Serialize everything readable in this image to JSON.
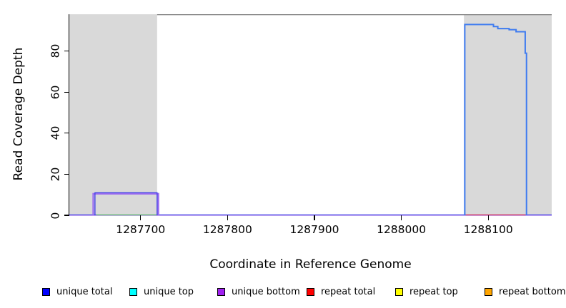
{
  "chart_data": {
    "type": "area",
    "title": "",
    "xlabel": "Coordinate in Reference Genome",
    "ylabel": "Read Coverage Depth",
    "xlim": [
      1287618,
      1288173
    ],
    "ylim": [
      0,
      98
    ],
    "x_ticks": [
      1287700,
      1287800,
      1287900,
      1288000,
      1288100
    ],
    "y_ticks": [
      0,
      20,
      40,
      60,
      80
    ],
    "grid": false,
    "legend_position": "bottom",
    "background_regions": [
      {
        "name": "shaded-region-left",
        "x_from": 1287618,
        "x_to": 1287719,
        "color": "#d9d9d9"
      },
      {
        "name": "shaded-region-right",
        "x_from": 1288072,
        "x_to": 1288173,
        "color": "#d9d9d9"
      }
    ],
    "top_border": {
      "x_from": 1287719,
      "x_to": 1288173,
      "color": "#777777"
    },
    "series": [
      {
        "name": "unique-bottom-baseline",
        "legend": "unique bottom",
        "color": "#c3a6f1",
        "width": 1.3,
        "dy": 0.4,
        "points": [
          [
            1287618,
            0
          ],
          [
            1288173,
            0
          ]
        ]
      },
      {
        "name": "unique-total-baseline",
        "legend": "unique total",
        "color": "#4a4ae8",
        "width": 1.2,
        "dy": -0.8,
        "points": [
          [
            1287618,
            0
          ],
          [
            1288173,
            0
          ]
        ]
      },
      {
        "name": "unique-top-segment",
        "legend": "unique top",
        "color": "#7cc87c",
        "width": 1.5,
        "dy": -0.6,
        "points": [
          [
            1287649,
            0
          ],
          [
            1287719,
            0
          ]
        ]
      },
      {
        "name": "repeat-total-segment",
        "legend": "repeat total",
        "color": "#e0506e",
        "width": 1.5,
        "dy": -0.6,
        "points": [
          [
            1288074,
            0
          ],
          [
            1288143,
            0
          ]
        ]
      },
      {
        "name": "unique-bottom-block",
        "legend": "unique bottom",
        "color": "#9a6cf0",
        "width": 2.2,
        "dy": 0,
        "points": [
          [
            1287645.5,
            0
          ],
          [
            1287645.5,
            10.5
          ],
          [
            1287720.5,
            10.5
          ],
          [
            1287720.5,
            0
          ]
        ]
      },
      {
        "name": "unique-total-small-block",
        "legend": "unique total",
        "color": "#4646e6",
        "width": 1.4,
        "dy": 0,
        "points": [
          [
            1287647.5,
            0
          ],
          [
            1287647.5,
            11
          ],
          [
            1287719,
            11
          ],
          [
            1287719,
            0
          ]
        ]
      },
      {
        "name": "unique-total-large-block",
        "legend": "unique total",
        "color": "#3e7bf0",
        "width": 2.0,
        "dy": 0,
        "points": [
          [
            1288073,
            0
          ],
          [
            1288073,
            93
          ],
          [
            1288106,
            93
          ],
          [
            1288106,
            92
          ],
          [
            1288111,
            92
          ],
          [
            1288111,
            91
          ],
          [
            1288124,
            91
          ],
          [
            1288124,
            90.5
          ],
          [
            1288132,
            90.5
          ],
          [
            1288132,
            89.5
          ],
          [
            1288142.5,
            89.5
          ],
          [
            1288142.5,
            79
          ],
          [
            1288144,
            79
          ],
          [
            1288144,
            0
          ]
        ]
      }
    ]
  },
  "legend": {
    "items": [
      {
        "label": "unique total",
        "color": "#0000ff"
      },
      {
        "label": "unique top",
        "color": "#00ffff"
      },
      {
        "label": "unique bottom",
        "color": "#a020f0"
      },
      {
        "label": "repeat total",
        "color": "#ff0000"
      },
      {
        "label": "repeat top",
        "color": "#ffff00"
      },
      {
        "label": "repeat bottom",
        "color": "#ffa500"
      }
    ]
  }
}
